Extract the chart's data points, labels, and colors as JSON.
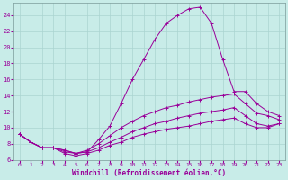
{
  "xlabel": "Windchill (Refroidissement éolien,°C)",
  "bg_color": "#c8ece8",
  "line_color": "#990099",
  "grid_color": "#aad4d0",
  "xlim": [
    -0.5,
    23.5
  ],
  "ylim": [
    6,
    25.5
  ],
  "xticks": [
    0,
    1,
    2,
    3,
    4,
    5,
    6,
    7,
    8,
    9,
    10,
    11,
    12,
    13,
    14,
    15,
    16,
    17,
    18,
    19,
    20,
    21,
    22,
    23
  ],
  "yticks": [
    6,
    8,
    10,
    12,
    14,
    16,
    18,
    20,
    22,
    24
  ],
  "curves": [
    {
      "x": [
        0,
        1,
        2,
        3,
        4,
        5,
        6,
        7,
        8,
        9,
        10,
        11,
        12,
        13,
        14,
        15,
        16,
        17,
        18,
        19,
        20,
        21,
        22,
        23
      ],
      "y": [
        9.2,
        8.2,
        7.5,
        7.5,
        7.2,
        6.8,
        7.0,
        8.5,
        10.2,
        13.0,
        16.0,
        18.5,
        21.0,
        23.0,
        24.0,
        24.8,
        25.0,
        23.0,
        18.5,
        14.5,
        14.5,
        13.0,
        12.0,
        11.5
      ]
    },
    {
      "x": [
        0,
        1,
        2,
        3,
        4,
        5,
        6,
        7,
        8,
        9,
        10,
        11,
        12,
        13,
        14,
        15,
        16,
        17,
        18,
        19,
        20,
        21,
        22,
        23
      ],
      "y": [
        9.2,
        8.2,
        7.5,
        7.5,
        7.2,
        6.8,
        7.2,
        8.0,
        9.0,
        10.0,
        10.8,
        11.5,
        12.0,
        12.5,
        12.8,
        13.2,
        13.5,
        13.8,
        14.0,
        14.2,
        13.0,
        11.8,
        11.5,
        11.0
      ]
    },
    {
      "x": [
        0,
        1,
        2,
        3,
        4,
        5,
        6,
        7,
        8,
        9,
        10,
        11,
        12,
        13,
        14,
        15,
        16,
        17,
        18,
        19,
        20,
        21,
        22,
        23
      ],
      "y": [
        9.2,
        8.2,
        7.5,
        7.5,
        7.0,
        6.8,
        7.0,
        7.5,
        8.2,
        8.8,
        9.5,
        10.0,
        10.5,
        10.8,
        11.2,
        11.5,
        11.8,
        12.0,
        12.2,
        12.5,
        11.5,
        10.5,
        10.2,
        10.5
      ]
    },
    {
      "x": [
        0,
        1,
        2,
        3,
        4,
        5,
        6,
        7,
        8,
        9,
        10,
        11,
        12,
        13,
        14,
        15,
        16,
        17,
        18,
        19,
        20,
        21,
        22,
        23
      ],
      "y": [
        9.2,
        8.2,
        7.5,
        7.5,
        6.8,
        6.5,
        6.8,
        7.2,
        7.8,
        8.2,
        8.8,
        9.2,
        9.5,
        9.8,
        10.0,
        10.2,
        10.5,
        10.8,
        11.0,
        11.2,
        10.5,
        10.0,
        10.0,
        10.5
      ]
    }
  ]
}
